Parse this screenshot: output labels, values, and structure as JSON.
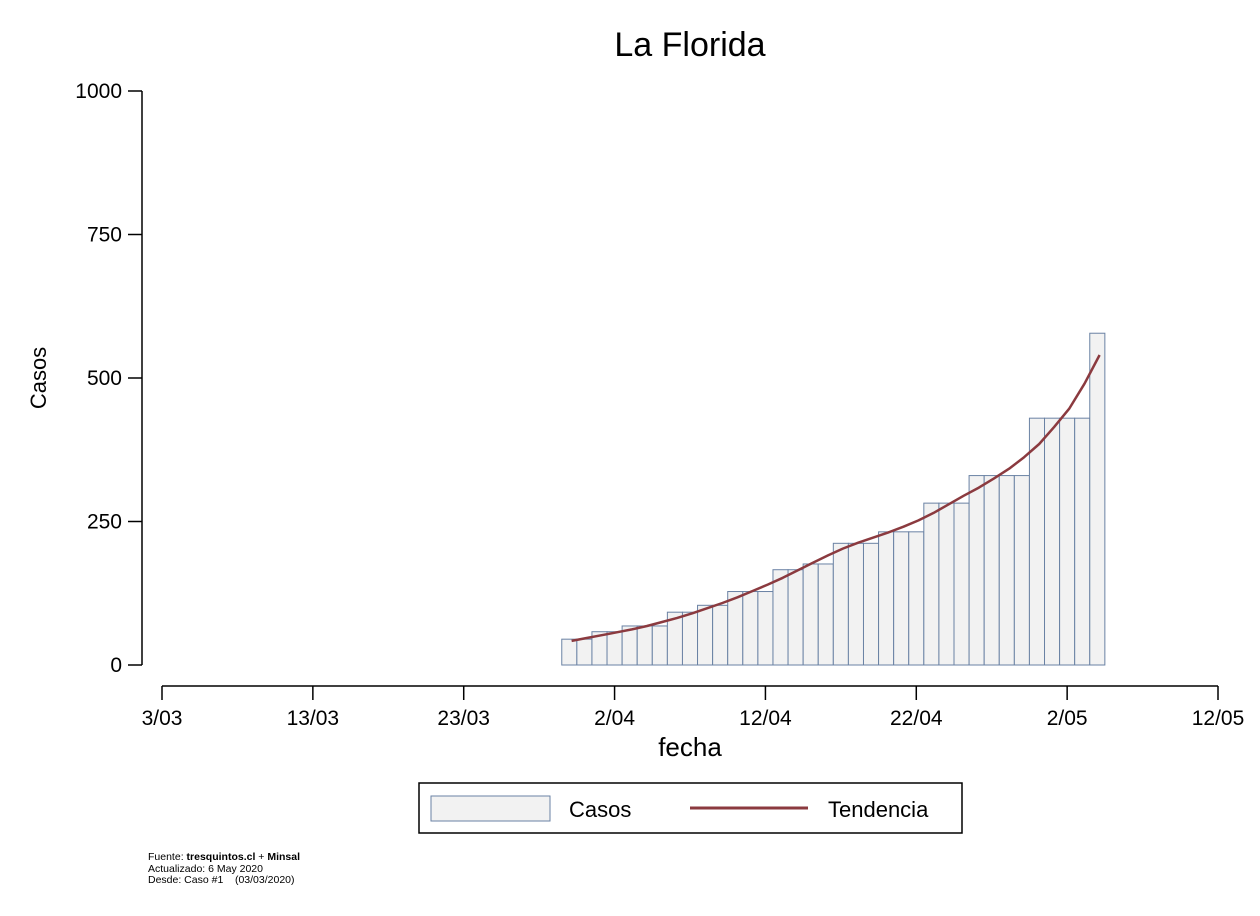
{
  "chart_data": {
    "type": "bar",
    "title": "La Florida",
    "xlabel": "fecha",
    "ylabel": "Casos",
    "ylim": [
      0,
      1000
    ],
    "xlim": [
      "3/03",
      "12/05"
    ],
    "yticks": [
      "0",
      "250",
      "500",
      "750",
      "1000"
    ],
    "xticks": [
      "3/03",
      "13/03",
      "23/03",
      "2/04",
      "12/04",
      "22/04",
      "2/05",
      "12/05"
    ],
    "grid": false,
    "legend_position": "bottom",
    "series": [
      {
        "name": "Casos",
        "kind": "bar",
        "color": "#f2f2f2",
        "edge_color": "#6a82a4",
        "x": [
          "30/03",
          "31/03",
          "1/04",
          "2/04",
          "3/04",
          "4/04",
          "5/04",
          "6/04",
          "7/04",
          "8/04",
          "9/04",
          "10/04",
          "11/04",
          "12/04",
          "13/04",
          "14/04",
          "15/04",
          "16/04",
          "17/04",
          "18/04",
          "19/04",
          "20/04",
          "21/04",
          "22/04",
          "23/04",
          "24/04",
          "25/04",
          "26/04",
          "27/04",
          "28/04",
          "29/04",
          "30/04",
          "1/05",
          "2/05",
          "3/05",
          "4/05"
        ],
        "values": [
          45,
          45,
          58,
          58,
          68,
          68,
          68,
          92,
          92,
          104,
          104,
          128,
          128,
          128,
          166,
          166,
          176,
          176,
          212,
          212,
          212,
          232,
          232,
          232,
          282,
          282,
          282,
          330,
          330,
          330,
          330,
          430,
          430,
          430,
          430,
          578
        ]
      },
      {
        "name": "Tendencia",
        "kind": "line",
        "color": "#8b3a3f",
        "x": [
          "30/03",
          "31/03",
          "1/04",
          "2/04",
          "3/04",
          "4/04",
          "5/04",
          "6/04",
          "7/04",
          "8/04",
          "9/04",
          "10/04",
          "11/04",
          "12/04",
          "13/04",
          "14/04",
          "15/04",
          "16/04",
          "17/04",
          "18/04",
          "19/04",
          "20/04",
          "21/04",
          "22/04",
          "23/04",
          "24/04",
          "25/04",
          "26/04",
          "27/04",
          "28/04",
          "29/04",
          "30/04",
          "1/05",
          "2/05",
          "3/05",
          "4/05"
        ],
        "values": [
          42,
          47,
          52,
          57,
          62,
          68,
          75,
          82,
          90,
          99,
          108,
          118,
          129,
          140,
          152,
          165,
          178,
          191,
          203,
          213,
          222,
          231,
          241,
          252,
          265,
          280,
          295,
          309,
          325,
          342,
          362,
          385,
          415,
          447,
          490,
          540
        ]
      }
    ]
  },
  "footnote": {
    "source_label": "Fuente: ",
    "source_site": "tresquintos.cl",
    "source_plus": " + ",
    "source_org": "Minsal",
    "updated": "Actualizado: 6 May 2020",
    "since": "Desde: Caso #1    (03/03/2020)"
  }
}
